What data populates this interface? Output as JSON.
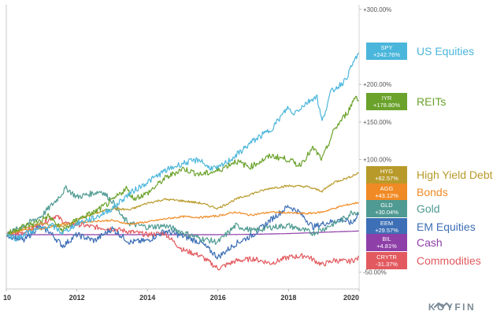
{
  "chart_data": {
    "type": "line",
    "x_range": [
      2010,
      2020
    ],
    "x_ticks": [
      "10",
      "2012",
      "2014",
      "2016",
      "2018",
      "2020"
    ],
    "y_ticks": [
      "+300.00%",
      "+200.00%",
      "+150.00%",
      "+100.00%",
      "-50.00%"
    ],
    "ylim": [
      -60,
      300
    ],
    "grid": false,
    "series": [
      {
        "ticker": "SPY",
        "change": "+242.76%",
        "name": "US Equities",
        "color": "#4bb6db",
        "points": [
          [
            2010.0,
            0
          ],
          [
            2010.3,
            -5
          ],
          [
            2010.6,
            3
          ],
          [
            2011.0,
            8
          ],
          [
            2011.3,
            12
          ],
          [
            2011.6,
            2
          ],
          [
            2012.0,
            15
          ],
          [
            2012.5,
            22
          ],
          [
            2013.0,
            35
          ],
          [
            2013.5,
            55
          ],
          [
            2014.0,
            70
          ],
          [
            2014.5,
            85
          ],
          [
            2015.0,
            95
          ],
          [
            2015.5,
            100
          ],
          [
            2015.7,
            90
          ],
          [
            2016.0,
            88
          ],
          [
            2016.5,
            105
          ],
          [
            2017.0,
            125
          ],
          [
            2017.5,
            140
          ],
          [
            2018.0,
            170
          ],
          [
            2018.1,
            160
          ],
          [
            2018.5,
            175
          ],
          [
            2018.8,
            185
          ],
          [
            2018.95,
            150
          ],
          [
            2019.2,
            190
          ],
          [
            2019.6,
            205
          ],
          [
            2019.9,
            235
          ],
          [
            2020.0,
            242.76
          ]
        ]
      },
      {
        "ticker": "IYR",
        "change": "+178.80%",
        "name": "REITs",
        "color": "#6aa22b",
        "points": [
          [
            2010.0,
            0
          ],
          [
            2010.4,
            10
          ],
          [
            2010.8,
            15
          ],
          [
            2011.2,
            25
          ],
          [
            2011.6,
            5
          ],
          [
            2012.0,
            20
          ],
          [
            2012.5,
            30
          ],
          [
            2013.0,
            45
          ],
          [
            2013.4,
            62
          ],
          [
            2013.6,
            48
          ],
          [
            2014.0,
            55
          ],
          [
            2014.5,
            75
          ],
          [
            2015.0,
            88
          ],
          [
            2015.5,
            80
          ],
          [
            2016.0,
            85
          ],
          [
            2016.5,
            98
          ],
          [
            2016.9,
            90
          ],
          [
            2017.5,
            105
          ],
          [
            2018.0,
            100
          ],
          [
            2018.3,
            92
          ],
          [
            2018.7,
            115
          ],
          [
            2018.95,
            100
          ],
          [
            2019.3,
            140
          ],
          [
            2019.7,
            165
          ],
          [
            2019.9,
            185
          ],
          [
            2020.0,
            178.8
          ]
        ]
      },
      {
        "ticker": "HYG",
        "change": "+82.57%",
        "name": "High Yield Debt",
        "color": "#b89a2a",
        "points": [
          [
            2010.0,
            0
          ],
          [
            2010.5,
            8
          ],
          [
            2011.0,
            15
          ],
          [
            2011.6,
            10
          ],
          [
            2012.0,
            20
          ],
          [
            2012.5,
            28
          ],
          [
            2013.0,
            35
          ],
          [
            2013.5,
            33
          ],
          [
            2014.0,
            42
          ],
          [
            2014.5,
            47
          ],
          [
            2015.0,
            45
          ],
          [
            2015.5,
            42
          ],
          [
            2016.0,
            35
          ],
          [
            2016.5,
            47
          ],
          [
            2017.0,
            55
          ],
          [
            2017.5,
            62
          ],
          [
            2018.0,
            65
          ],
          [
            2018.5,
            64
          ],
          [
            2018.95,
            58
          ],
          [
            2019.3,
            70
          ],
          [
            2019.7,
            76
          ],
          [
            2020.0,
            82.57
          ]
        ]
      },
      {
        "ticker": "AGG",
        "change": "+43.12%",
        "name": "Bonds",
        "color": "#f08a24",
        "points": [
          [
            2010.0,
            0
          ],
          [
            2010.5,
            6
          ],
          [
            2011.0,
            8
          ],
          [
            2011.6,
            14
          ],
          [
            2012.0,
            16
          ],
          [
            2012.5,
            18
          ],
          [
            2013.0,
            19
          ],
          [
            2013.5,
            14
          ],
          [
            2014.0,
            17
          ],
          [
            2014.5,
            21
          ],
          [
            2015.0,
            24
          ],
          [
            2015.5,
            23
          ],
          [
            2016.0,
            25
          ],
          [
            2016.5,
            30
          ],
          [
            2016.9,
            26
          ],
          [
            2017.5,
            30
          ],
          [
            2018.0,
            29
          ],
          [
            2018.5,
            28
          ],
          [
            2018.95,
            30
          ],
          [
            2019.5,
            38
          ],
          [
            2020.0,
            43.12
          ]
        ]
      },
      {
        "ticker": "GLD",
        "change": "+30.04%",
        "name": "Gold",
        "color": "#4f9a92",
        "points": [
          [
            2010.0,
            0
          ],
          [
            2010.5,
            12
          ],
          [
            2011.0,
            25
          ],
          [
            2011.4,
            45
          ],
          [
            2011.7,
            62
          ],
          [
            2012.0,
            50
          ],
          [
            2012.7,
            58
          ],
          [
            2013.0,
            45
          ],
          [
            2013.3,
            22
          ],
          [
            2013.5,
            15
          ],
          [
            2014.0,
            10
          ],
          [
            2014.5,
            12
          ],
          [
            2015.0,
            3
          ],
          [
            2015.5,
            -5
          ],
          [
            2016.0,
            -10
          ],
          [
            2016.5,
            12
          ],
          [
            2017.0,
            5
          ],
          [
            2017.5,
            10
          ],
          [
            2018.0,
            12
          ],
          [
            2018.7,
            2
          ],
          [
            2019.0,
            8
          ],
          [
            2019.6,
            22
          ],
          [
            2019.8,
            30
          ],
          [
            2020.0,
            30.04
          ]
        ]
      },
      {
        "ticker": "EEM",
        "change": "+29.57%",
        "name": "EM Equities",
        "color": "#3d6fb6",
        "points": [
          [
            2010.0,
            0
          ],
          [
            2010.5,
            -8
          ],
          [
            2010.9,
            10
          ],
          [
            2011.2,
            5
          ],
          [
            2011.6,
            -15
          ],
          [
            2012.0,
            0
          ],
          [
            2012.5,
            -8
          ],
          [
            2013.0,
            8
          ],
          [
            2013.5,
            -10
          ],
          [
            2014.0,
            -8
          ],
          [
            2014.5,
            5
          ],
          [
            2015.0,
            -2
          ],
          [
            2015.5,
            -10
          ],
          [
            2016.0,
            -30
          ],
          [
            2016.5,
            -12
          ],
          [
            2017.0,
            0
          ],
          [
            2017.5,
            20
          ],
          [
            2018.0,
            38
          ],
          [
            2018.3,
            30
          ],
          [
            2018.7,
            10
          ],
          [
            2019.0,
            15
          ],
          [
            2019.5,
            20
          ],
          [
            2019.8,
            15
          ],
          [
            2020.0,
            29.57
          ]
        ]
      },
      {
        "ticker": "BIL",
        "change": "+4.81%",
        "name": "Cash",
        "color": "#8e3fa8",
        "points": [
          [
            2010.0,
            0
          ],
          [
            2011.0,
            0
          ],
          [
            2012.0,
            0
          ],
          [
            2013.0,
            0
          ],
          [
            2014.0,
            0
          ],
          [
            2015.0,
            0
          ],
          [
            2016.0,
            0
          ],
          [
            2016.5,
            0.2
          ],
          [
            2017.0,
            0.5
          ],
          [
            2017.5,
            1
          ],
          [
            2018.0,
            1.5
          ],
          [
            2018.5,
            2.3
          ],
          [
            2019.0,
            3.2
          ],
          [
            2019.5,
            4.1
          ],
          [
            2020.0,
            4.81
          ]
        ]
      },
      {
        "ticker": "CRYTR",
        "change": "-31.37%",
        "name": "Commodities",
        "color": "#e25a5f",
        "points": [
          [
            2010.0,
            0
          ],
          [
            2010.5,
            3
          ],
          [
            2011.0,
            15
          ],
          [
            2011.4,
            25
          ],
          [
            2011.8,
            12
          ],
          [
            2012.0,
            14
          ],
          [
            2012.5,
            10
          ],
          [
            2013.0,
            8
          ],
          [
            2013.5,
            4
          ],
          [
            2014.0,
            0
          ],
          [
            2014.5,
            2
          ],
          [
            2014.8,
            -12
          ],
          [
            2015.0,
            -20
          ],
          [
            2015.5,
            -28
          ],
          [
            2016.0,
            -45
          ],
          [
            2016.5,
            -35
          ],
          [
            2017.0,
            -32
          ],
          [
            2017.5,
            -38
          ],
          [
            2018.0,
            -30
          ],
          [
            2018.5,
            -28
          ],
          [
            2018.95,
            -40
          ],
          [
            2019.3,
            -34
          ],
          [
            2019.7,
            -36
          ],
          [
            2020.0,
            -31.37
          ]
        ]
      }
    ]
  },
  "brand": {
    "text": "KOYFIN",
    "color": "#7a8a96"
  }
}
